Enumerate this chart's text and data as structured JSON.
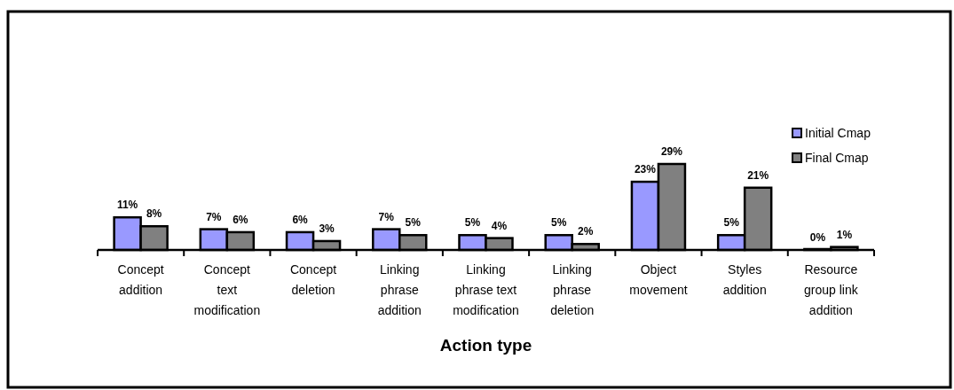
{
  "chart_data": {
    "type": "bar",
    "xlabel": "Action type",
    "categories": [
      "Concept addition",
      "Concept text modification",
      "Concept deletion",
      "Linking phrase addition",
      "Linking phrase text modification",
      "Linking phrase deletion",
      "Object movement",
      "Styles addition",
      "Resource group link addition"
    ],
    "series": [
      {
        "name": "Initial Cmap",
        "color": "#9999ff",
        "values": [
          11,
          7,
          6,
          7,
          5,
          5,
          23,
          5,
          0
        ],
        "value_labels": [
          "11%",
          "7%",
          "6%",
          "7%",
          "5%",
          "5%",
          "23%",
          "5%",
          "0%"
        ]
      },
      {
        "name": "Final Cmap",
        "color": "#808080",
        "values": [
          8,
          6,
          3,
          5,
          4,
          2,
          29,
          21,
          1
        ],
        "value_labels": [
          "8%",
          "6%",
          "3%",
          "5%",
          "4%",
          "2%",
          "29%",
          "21%",
          "1%"
        ]
      }
    ],
    "legend": "right"
  }
}
